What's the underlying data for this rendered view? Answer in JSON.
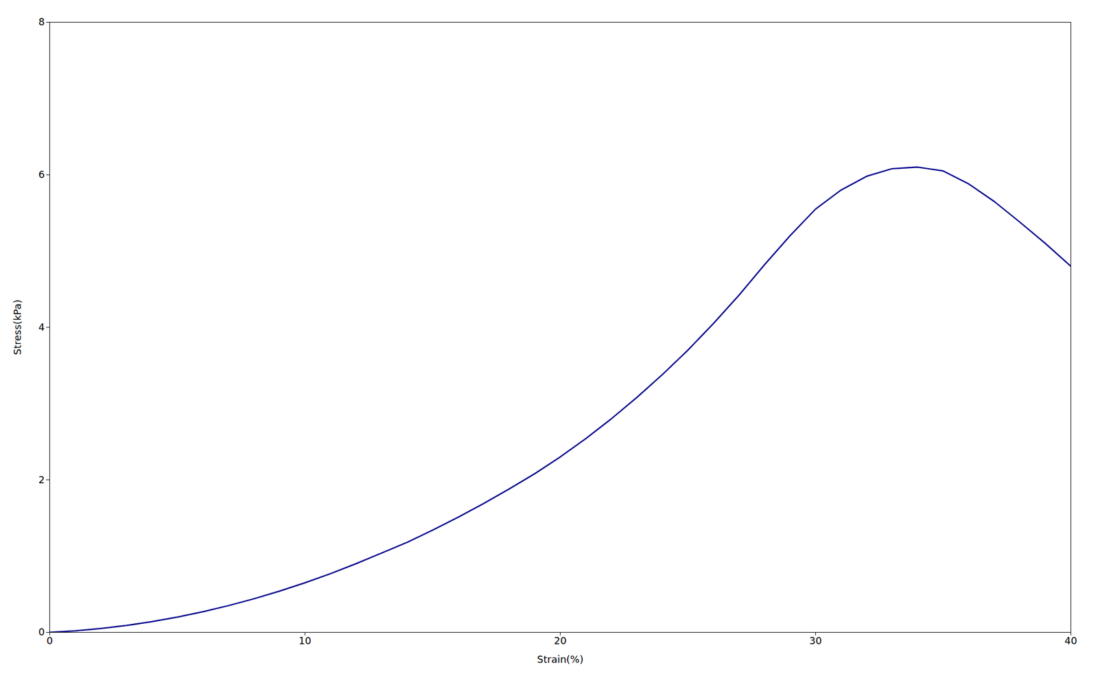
{
  "chart_data": {
    "type": "line",
    "x": [
      0,
      1,
      2,
      3,
      4,
      5,
      6,
      7,
      8,
      9,
      10,
      11,
      12,
      13,
      14,
      15,
      16,
      17,
      18,
      19,
      20,
      21,
      22,
      23,
      24,
      25,
      26,
      27,
      28,
      29,
      30,
      31,
      32,
      33,
      34,
      35,
      36,
      37,
      38,
      39,
      40
    ],
    "values": [
      0,
      0.02,
      0.05,
      0.09,
      0.14,
      0.2,
      0.27,
      0.35,
      0.44,
      0.54,
      0.65,
      0.77,
      0.9,
      1.04,
      1.18,
      1.34,
      1.51,
      1.69,
      1.88,
      2.08,
      2.3,
      2.54,
      2.8,
      3.08,
      3.38,
      3.7,
      4.05,
      4.42,
      4.82,
      5.2,
      5.55,
      5.8,
      5.98,
      6.08,
      6.1,
      6.05,
      5.88,
      5.65,
      5.38,
      5.1,
      4.8
    ],
    "color": "#00008B",
    "xlabel": "Strain(%)",
    "ylabel": "Stress(kPa)",
    "xlim": [
      0,
      40
    ],
    "ylim": [
      0,
      8
    ],
    "xticks": [
      0,
      10,
      20,
      30,
      40
    ],
    "yticks": [
      0,
      2,
      4,
      6,
      8
    ],
    "grid": false
  }
}
